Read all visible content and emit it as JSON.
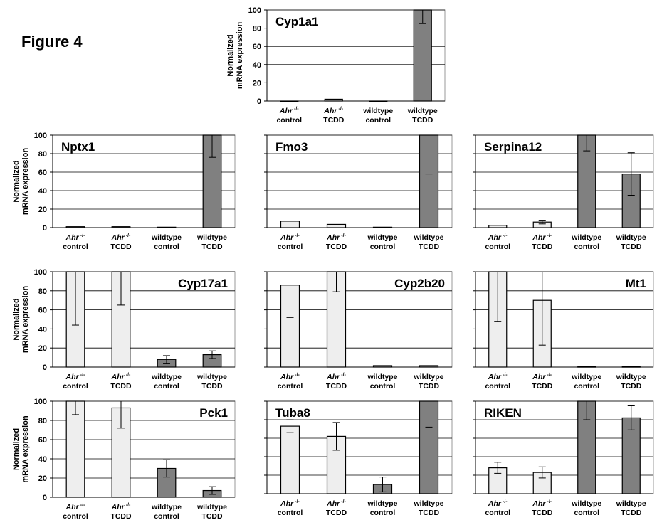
{
  "figure_title": "Figure  4",
  "colors": {
    "light_bar": "#eeeeee",
    "dark_bar": "#808080",
    "bar_stroke": "#000000",
    "gridline": "#000000",
    "frame": "#999999"
  },
  "chart_data": [
    {
      "id": "cyp1a1",
      "type": "bar",
      "title": "Cyp1a1",
      "ylabel": [
        "Normalized",
        "mRNA expression"
      ],
      "ylim": [
        0,
        100
      ],
      "yticks": [
        "0",
        "20",
        "40",
        "60",
        "80",
        "100"
      ],
      "categories": [
        {
          "label": [
            "Ahr",
            "control"
          ],
          "superscript": "-/-",
          "italic": true
        },
        {
          "label": [
            "Ahr",
            "TCDD"
          ],
          "superscript": "-/-",
          "italic": true
        },
        {
          "label": [
            "wildtype",
            "control"
          ]
        },
        {
          "label": [
            "wildtype",
            "TCDD"
          ]
        }
      ],
      "values": [
        0,
        2,
        0,
        100
      ],
      "error": [
        0,
        0,
        0,
        15
      ],
      "bar_colors": [
        "light",
        "light",
        "light",
        "dark"
      ],
      "title_position": "top-left"
    },
    {
      "id": "nptx1",
      "type": "bar",
      "title": "Nptx1",
      "ylabel": [
        "Normalized",
        "mRNA expression"
      ],
      "ylim": [
        0,
        100
      ],
      "yticks": [
        "0",
        "20",
        "40",
        "60",
        "80",
        "100"
      ],
      "categories": [
        {
          "label": [
            "Ahr",
            "control"
          ],
          "superscript": "-/-",
          "italic": true
        },
        {
          "label": [
            "Ahr",
            "TCDD"
          ],
          "superscript": "-/-",
          "italic": true
        },
        {
          "label": [
            "wildtype",
            "control"
          ]
        },
        {
          "label": [
            "wildtype",
            "TCDD"
          ]
        }
      ],
      "values": [
        1,
        1,
        0.5,
        100
      ],
      "error": [
        0,
        0,
        0,
        24
      ],
      "bar_colors": [
        "light",
        "light",
        "light",
        "dark"
      ],
      "title_position": "top-left"
    },
    {
      "id": "fmo3",
      "type": "bar",
      "title": "Fmo3",
      "ylim": [
        0,
        100
      ],
      "yticks": [],
      "categories": [
        {
          "label": [
            "Ahr",
            "control"
          ],
          "superscript": "-/-",
          "italic": true
        },
        {
          "label": [
            "Ahr",
            "TCDD"
          ],
          "superscript": "-/-",
          "italic": true
        },
        {
          "label": [
            "wildtype",
            "control"
          ]
        },
        {
          "label": [
            "wildtype",
            "TCDD"
          ]
        }
      ],
      "values": [
        7,
        3.5,
        0.5,
        100
      ],
      "error": [
        0,
        0,
        0,
        42
      ],
      "bar_colors": [
        "light",
        "light",
        "light",
        "dark"
      ],
      "title_position": "top-left"
    },
    {
      "id": "serpina12",
      "type": "bar",
      "title": "Serpina12",
      "ylim": [
        0,
        100
      ],
      "yticks": [],
      "categories": [
        {
          "label": [
            "Ahr",
            "control"
          ],
          "superscript": "-/-",
          "italic": true
        },
        {
          "label": [
            "Ahr",
            "TCDD"
          ],
          "superscript": "-/-",
          "italic": true
        },
        {
          "label": [
            "wildtype",
            "control"
          ]
        },
        {
          "label": [
            "wildtype",
            "TCDD"
          ]
        }
      ],
      "values": [
        2.5,
        6,
        100,
        58
      ],
      "error": [
        0,
        2,
        17,
        23
      ],
      "bar_colors": [
        "light",
        "light",
        "dark",
        "dark"
      ],
      "title_position": "top-left"
    },
    {
      "id": "cyp17a1",
      "type": "bar",
      "title": "Cyp17a1",
      "ylabel": [
        "Normalized",
        "mRNA expression"
      ],
      "ylim": [
        0,
        100
      ],
      "yticks": [
        "0",
        "20",
        "40",
        "60",
        "80",
        "100"
      ],
      "categories": [
        {
          "label": [
            "Ahr",
            "control"
          ],
          "superscript": "-/-",
          "italic": true
        },
        {
          "label": [
            "Ahr",
            "TCDD"
          ],
          "superscript": "-/-",
          "italic": true
        },
        {
          "label": [
            "wildtype",
            "control"
          ]
        },
        {
          "label": [
            "wildtype",
            "TCDD"
          ]
        }
      ],
      "values": [
        100,
        100,
        8,
        13
      ],
      "error": [
        56,
        35,
        4,
        4
      ],
      "bar_colors": [
        "light",
        "light",
        "dark",
        "dark"
      ],
      "title_position": "top-right"
    },
    {
      "id": "cyp2b20",
      "type": "bar",
      "title": "Cyp2b20",
      "ylim": [
        0,
        100
      ],
      "yticks": [],
      "categories": [
        {
          "label": [
            "Ahr",
            "control"
          ],
          "superscript": "-/-",
          "italic": true
        },
        {
          "label": [
            "Ahr",
            "TCDD"
          ],
          "superscript": "-/-",
          "italic": true
        },
        {
          "label": [
            "wildtype",
            "control"
          ]
        },
        {
          "label": [
            "wildtype",
            "TCDD"
          ]
        }
      ],
      "values": [
        86,
        100,
        1.5,
        1.5
      ],
      "error": [
        34,
        21,
        0,
        0
      ],
      "bar_colors": [
        "light",
        "light",
        "dark",
        "dark"
      ],
      "title_position": "top-right"
    },
    {
      "id": "mt1",
      "type": "bar",
      "title": "Mt1",
      "ylim": [
        0,
        100
      ],
      "yticks": [],
      "categories": [
        {
          "label": [
            "Ahr",
            "control"
          ],
          "superscript": "-/-",
          "italic": true
        },
        {
          "label": [
            "Ahr",
            "TCDD"
          ],
          "superscript": "-/-",
          "italic": true
        },
        {
          "label": [
            "wildtype",
            "control"
          ]
        },
        {
          "label": [
            "wildtype",
            "TCDD"
          ]
        }
      ],
      "values": [
        100,
        70,
        0.5,
        0.5
      ],
      "error": [
        52,
        47,
        0,
        0
      ],
      "bar_colors": [
        "light",
        "light",
        "dark",
        "dark"
      ],
      "title_position": "top-right"
    },
    {
      "id": "pck1",
      "type": "bar",
      "title": "Pck1",
      "ylabel": [
        "Normalized",
        "mRNA expression"
      ],
      "ylim": [
        0,
        100
      ],
      "yticks": [
        "0",
        "20",
        "40",
        "60",
        "80",
        "100"
      ],
      "categories": [
        {
          "label": [
            "Ahr",
            "control"
          ],
          "superscript": "-/-",
          "italic": true
        },
        {
          "label": [
            "Ahr",
            "TCDD"
          ],
          "superscript": "-/-",
          "italic": true
        },
        {
          "label": [
            "wildtype",
            "control"
          ]
        },
        {
          "label": [
            "wildtype",
            "TCDD"
          ]
        }
      ],
      "values": [
        100,
        93,
        30,
        7
      ],
      "error": [
        14,
        21,
        9,
        4
      ],
      "bar_colors": [
        "light",
        "light",
        "dark",
        "dark"
      ],
      "title_position": "top-right"
    },
    {
      "id": "tuba8",
      "type": "bar",
      "title": "Tuba8",
      "ylim": [
        0,
        100
      ],
      "yticks": [],
      "categories": [
        {
          "label": [
            "Ahr",
            "control"
          ],
          "superscript": "-/-",
          "italic": true
        },
        {
          "label": [
            "Ahr",
            "TCDD"
          ],
          "superscript": "-/-",
          "italic": true
        },
        {
          "label": [
            "wildtype",
            "control"
          ]
        },
        {
          "label": [
            "wildtype",
            "TCDD"
          ]
        }
      ],
      "values": [
        73,
        62,
        10,
        100
      ],
      "error": [
        7,
        15,
        8,
        28
      ],
      "bar_colors": [
        "light",
        "light",
        "dark",
        "dark"
      ],
      "title_position": "top-left"
    },
    {
      "id": "riken",
      "type": "bar",
      "title": "RIKEN",
      "ylim": [
        0,
        100
      ],
      "yticks": [],
      "categories": [
        {
          "label": [
            "Ahr",
            "control"
          ],
          "superscript": "-/-",
          "italic": true
        },
        {
          "label": [
            "Ahr",
            "TCDD"
          ],
          "superscript": "-/-",
          "italic": true
        },
        {
          "label": [
            "wildtype",
            "control"
          ]
        },
        {
          "label": [
            "wildtype",
            "TCDD"
          ]
        }
      ],
      "values": [
        28,
        23,
        100,
        82
      ],
      "error": [
        6,
        6,
        20,
        13
      ],
      "bar_colors": [
        "light",
        "light",
        "dark",
        "dark"
      ],
      "title_position": "top-left"
    }
  ]
}
